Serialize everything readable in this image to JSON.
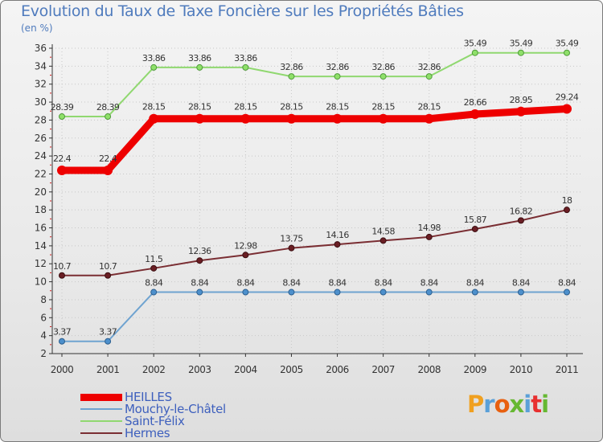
{
  "title": "Evolution du Taux de Taxe Foncière sur les Propriétés Bâties",
  "unit_label": "(en %)",
  "logo_text": "Proxiti",
  "chart_data": {
    "type": "line",
    "title": "Evolution du Taux de Taxe Foncière sur les Propriétés Bâties",
    "ylabel": "(en %)",
    "xlabel": "",
    "ylim": [
      2,
      36
    ],
    "y_ticks": [
      2,
      4,
      6,
      8,
      10,
      12,
      14,
      16,
      18,
      20,
      22,
      24,
      26,
      28,
      30,
      32,
      34,
      36
    ],
    "x": [
      "2000",
      "2001",
      "2002",
      "2003",
      "2004",
      "2005",
      "2006",
      "2007",
      "2008",
      "2009",
      "2010",
      "2011"
    ],
    "legend_position": "bottom-left",
    "series": [
      {
        "name": "HEILLES",
        "color": "#ee0000",
        "values": [
          22.4,
          22.4,
          28.15,
          28.15,
          28.15,
          28.15,
          28.15,
          28.15,
          28.15,
          28.66,
          28.95,
          29.24
        ],
        "labels": [
          "22.4",
          "22.4",
          "28.15",
          "28.15",
          "28.15",
          "28.15",
          "28.15",
          "28.15",
          "28.15",
          "28.66",
          "28.95",
          "29.24"
        ]
      },
      {
        "name": "Mouchy-le-Châtel",
        "color": "#6fa3d0",
        "values": [
          3.37,
          3.37,
          8.84,
          8.84,
          8.84,
          8.84,
          8.84,
          8.84,
          8.84,
          8.84,
          8.84,
          8.84
        ],
        "labels": [
          "3.37",
          "3.37",
          "8.84",
          "8.84",
          "8.84",
          "8.84",
          "8.84",
          "8.84",
          "8.84",
          "8.84",
          "8.84",
          "8.84"
        ]
      },
      {
        "name": "Saint-Félix",
        "color": "#90d870",
        "values": [
          28.39,
          28.39,
          33.86,
          33.86,
          33.86,
          32.86,
          32.86,
          32.86,
          32.86,
          35.49,
          35.49,
          35.49
        ],
        "labels": [
          "28.39",
          "28.39",
          "33.86",
          "33.86",
          "33.86",
          "32.86",
          "32.86",
          "32.86",
          "32.86",
          "35.49",
          "35.49",
          "35.49"
        ]
      },
      {
        "name": "Hermes",
        "color": "#7a2e33",
        "values": [
          10.7,
          10.7,
          11.5,
          12.36,
          12.98,
          13.75,
          14.16,
          14.58,
          14.98,
          15.87,
          16.82,
          18
        ],
        "labels": [
          "10.7",
          "10.7",
          "11.5",
          "12.36",
          "12.98",
          "13.75",
          "14.16",
          "14.58",
          "14.98",
          "15.87",
          "16.82",
          "18"
        ]
      }
    ]
  }
}
